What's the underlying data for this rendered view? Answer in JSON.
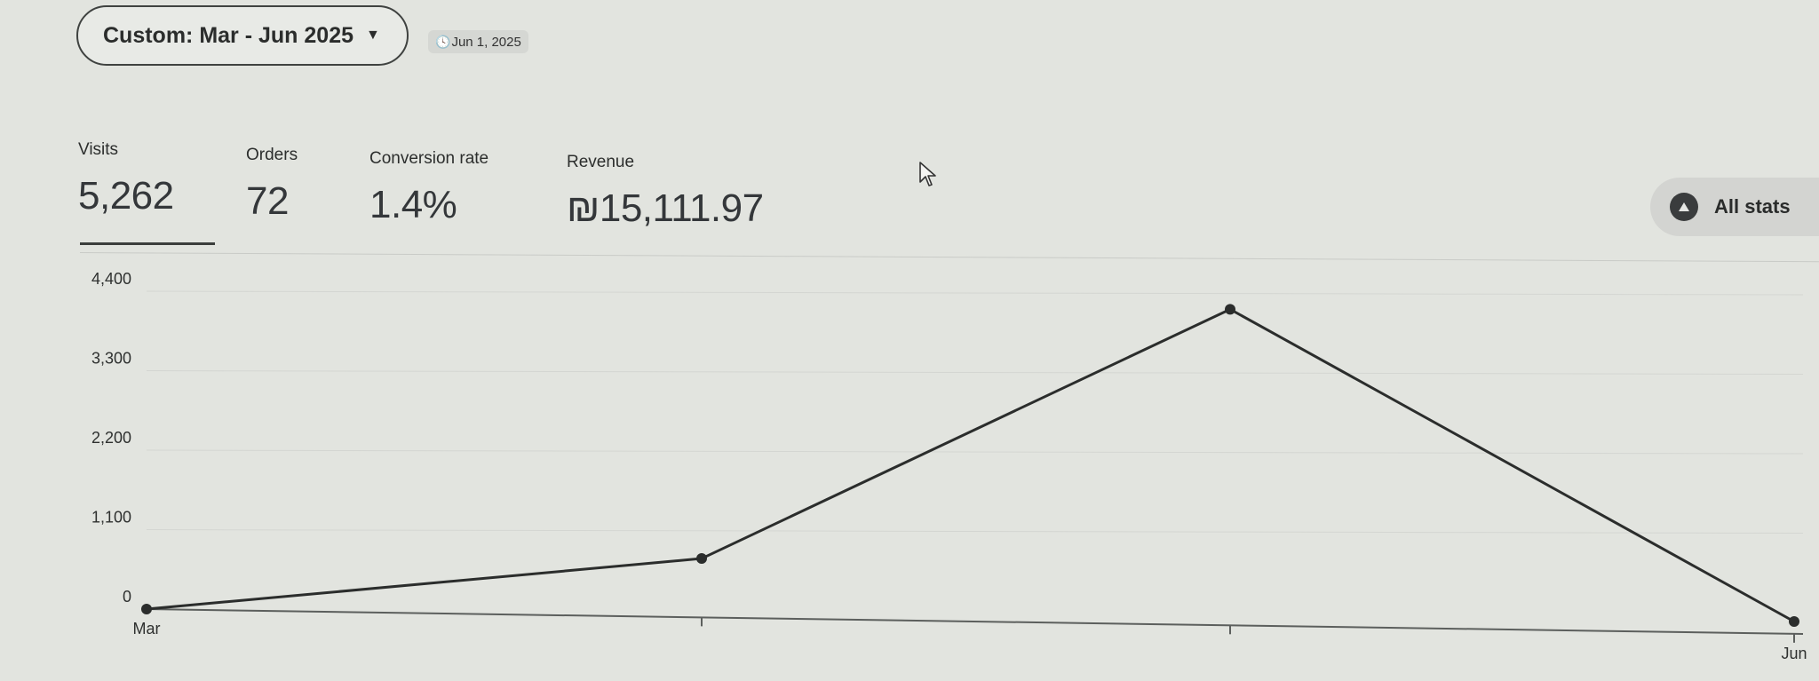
{
  "toolbar": {
    "date_range_label": "Custom: Mar - Jun 2025",
    "comparison_date": "Jun 1, 2025"
  },
  "metrics": {
    "visits": {
      "label": "Visits",
      "value": "5,262",
      "active": true
    },
    "orders": {
      "label": "Orders",
      "value": "72"
    },
    "conversion_rate": {
      "label": "Conversion rate",
      "value": "1.4%"
    },
    "revenue": {
      "label": "Revenue",
      "value": "₪15,111.97"
    }
  },
  "all_stats_button": {
    "label": "All stats",
    "icon": "chevron-up-icon"
  },
  "colors": {
    "line": "#2b2d2c",
    "background": "#e2e4df"
  },
  "chart_data": {
    "type": "line",
    "x_labels": [
      "Mar",
      "",
      "",
      "Jun"
    ],
    "y_ticks": [
      "0",
      "1,100",
      "2,200",
      "3,300",
      "4,400"
    ],
    "ylim": [
      0,
      4400
    ],
    "series": [
      {
        "values": [
          0,
          700,
          4150,
          0
        ]
      }
    ],
    "grid": true
  }
}
